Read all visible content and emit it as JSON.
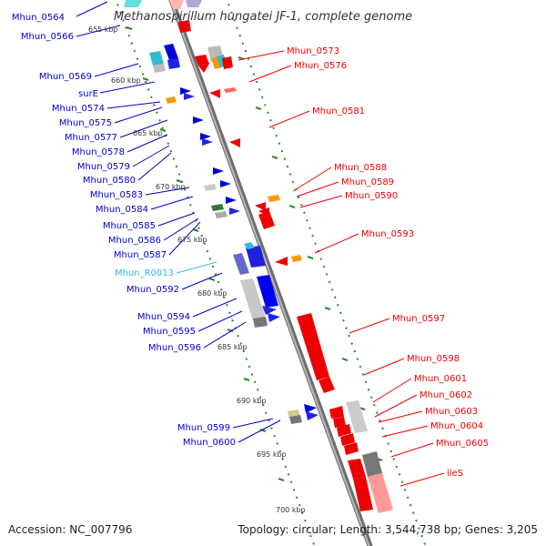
{
  "title": "Methanospirillum hungatei JF-1, complete genome",
  "footer": {
    "accession": "Accession: NC_007796",
    "summary": "Topology: circular; Length: 3,544,738 bp; Genes: 3,205"
  },
  "colors": {
    "forward_gene": "#e00000",
    "reverse_gene": "#0000cc",
    "rna_label": "#33bbee",
    "backbone": "#8a8a8a",
    "gc_dots": "#2a8a2a"
  },
  "kbp_ticks": [
    {
      "label": "655 kbp",
      "pos": 0
    },
    {
      "label": "660 kbp",
      "pos": 5
    },
    {
      "label": "665 kbp",
      "pos": 10
    },
    {
      "label": "670 kbp",
      "pos": 15
    },
    {
      "label": "675 kbp",
      "pos": 20
    },
    {
      "label": "680 kbp",
      "pos": 25
    },
    {
      "label": "685 kbp",
      "pos": 30
    },
    {
      "label": "690 kbp",
      "pos": 35
    },
    {
      "label": "695 kbp",
      "pos": 40
    },
    {
      "label": "700 kbp",
      "pos": 45
    }
  ],
  "left_labels": [
    {
      "text": "Mhun_0564",
      "color": "reverse"
    },
    {
      "text": "Mhun_0566",
      "color": "reverse"
    },
    {
      "text": "Mhun_0569",
      "color": "reverse"
    },
    {
      "text": "surE",
      "color": "reverse"
    },
    {
      "text": "Mhun_0574",
      "color": "reverse"
    },
    {
      "text": "Mhun_0575",
      "color": "reverse"
    },
    {
      "text": "Mhun_0577",
      "color": "reverse"
    },
    {
      "text": "Mhun_0578",
      "color": "reverse"
    },
    {
      "text": "Mhun_0579",
      "color": "reverse"
    },
    {
      "text": "Mhun_0580",
      "color": "reverse"
    },
    {
      "text": "Mhun_0583",
      "color": "reverse"
    },
    {
      "text": "Mhun_0584",
      "color": "reverse"
    },
    {
      "text": "Mhun_0585",
      "color": "reverse"
    },
    {
      "text": "Mhun_0586",
      "color": "reverse"
    },
    {
      "text": "Mhun_0587",
      "color": "reverse"
    },
    {
      "text": "Mhun_R0013",
      "color": "rna"
    },
    {
      "text": "Mhun_0592",
      "color": "reverse"
    },
    {
      "text": "Mhun_0594",
      "color": "reverse"
    },
    {
      "text": "Mhun_0595",
      "color": "reverse"
    },
    {
      "text": "Mhun_0596",
      "color": "reverse"
    },
    {
      "text": "Mhun_0599",
      "color": "reverse"
    },
    {
      "text": "Mhun_0600",
      "color": "reverse"
    }
  ],
  "right_labels": [
    {
      "text": "Mhun_0573",
      "color": "forward"
    },
    {
      "text": "Mhun_0576",
      "color": "forward"
    },
    {
      "text": "Mhun_0581",
      "color": "forward"
    },
    {
      "text": "Mhun_0588",
      "color": "forward"
    },
    {
      "text": "Mhun_0589",
      "color": "forward"
    },
    {
      "text": "Mhun_0590",
      "color": "forward"
    },
    {
      "text": "Mhun_0593",
      "color": "forward"
    },
    {
      "text": "Mhun_0597",
      "color": "forward"
    },
    {
      "text": "Mhun_0598",
      "color": "forward"
    },
    {
      "text": "Mhun_0601",
      "color": "forward"
    },
    {
      "text": "Mhun_0602",
      "color": "forward"
    },
    {
      "text": "Mhun_0603",
      "color": "forward"
    },
    {
      "text": "Mhun_0604",
      "color": "forward"
    },
    {
      "text": "Mhun_0605",
      "color": "forward"
    },
    {
      "text": "ileS",
      "color": "forward"
    }
  ]
}
